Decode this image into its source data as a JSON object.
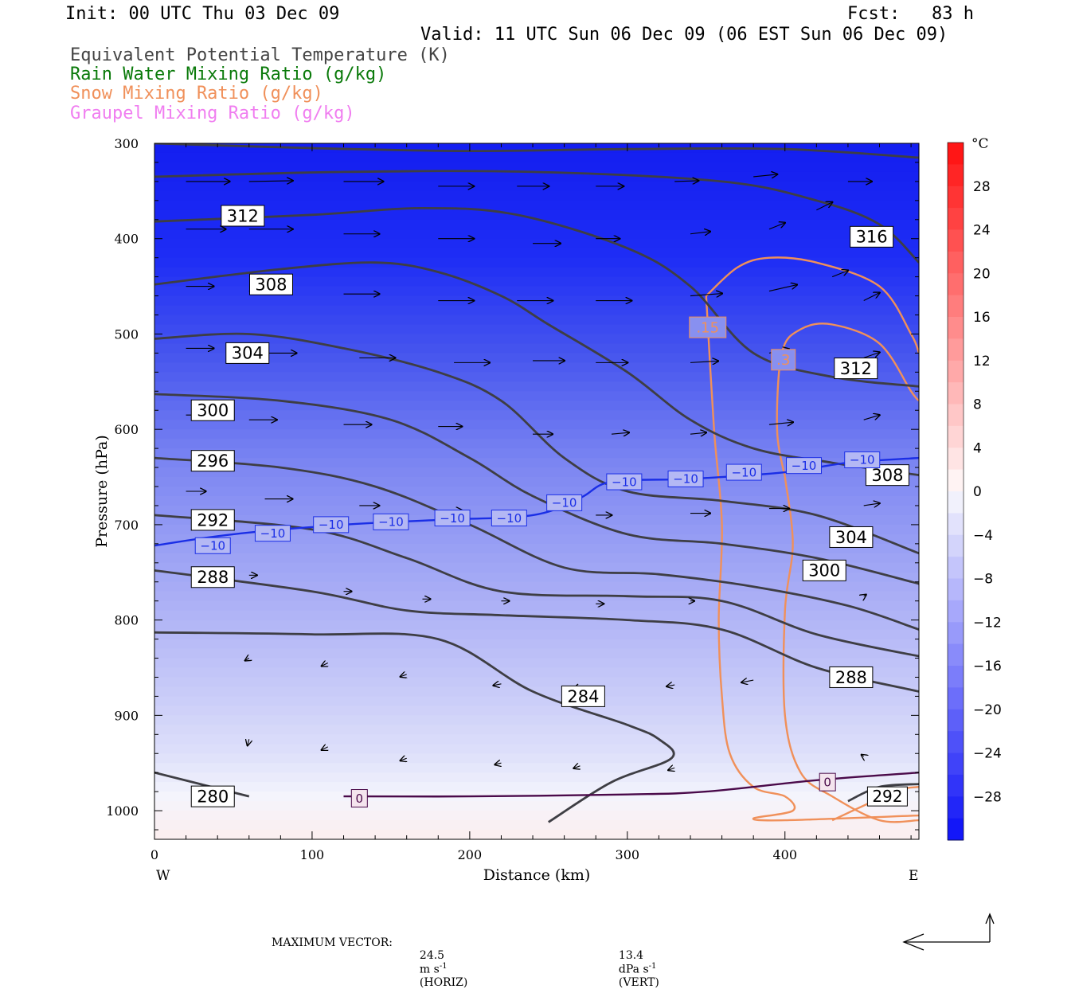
{
  "header": {
    "init": "Init: 00 UTC Thu 03 Dec 09",
    "fcst": "Fcst:   83 h",
    "valid": "Valid: 11 UTC Sun 06 Dec 09 (06 EST Sun 06 Dec 09)"
  },
  "legend": [
    {
      "label": "Equivalent Potential Temperature (K)",
      "color": "#444444"
    },
    {
      "label": "Rain Water Mixing Ratio (g/kg)",
      "color": "#0a7a0a"
    },
    {
      "label": "Snow Mixing Ratio (g/kg)",
      "color": "#f0905a"
    },
    {
      "label": "Graupel Mixing Ratio (g/kg)",
      "color": "#f07ef0"
    }
  ],
  "chart_data": {
    "type": "contour",
    "xlabel": "Distance (km)",
    "ylabel": "Pressure (hPa)",
    "xlim": [
      0,
      485
    ],
    "ylim": [
      1030,
      300
    ],
    "x_ticks": [
      "0",
      "100",
      "200",
      "300",
      "400"
    ],
    "y_ticks": [
      "300",
      "400",
      "500",
      "600",
      "700",
      "800",
      "900",
      "1000"
    ],
    "x_end_labels": {
      "left": "W",
      "right": "E"
    },
    "colorbar": {
      "unit": "°C",
      "min": -32,
      "max": 32,
      "ticks": [
        "28",
        "24",
        "20",
        "16",
        "12",
        "8",
        "4",
        "0",
        "−4",
        "−8",
        "−12",
        "−16",
        "−20",
        "−24",
        "−28"
      ],
      "tick_values": [
        28,
        24,
        20,
        16,
        12,
        8,
        4,
        0,
        -4,
        -8,
        -12,
        -16,
        -20,
        -24,
        -28
      ]
    },
    "theta_e_contours": [
      {
        "label": "280",
        "points": [
          [
            0,
            960
          ],
          [
            60,
            985
          ]
        ]
      },
      {
        "label": "284",
        "points": [
          [
            0,
            813
          ],
          [
            100,
            815
          ],
          [
            180,
            820
          ],
          [
            240,
            875
          ],
          [
            300,
            910
          ],
          [
            320,
            925
          ],
          [
            328,
            945
          ],
          [
            290,
            970
          ],
          [
            250,
            1012
          ]
        ]
      },
      {
        "label": "288",
        "points": [
          [
            0,
            748
          ],
          [
            100,
            770
          ],
          [
            160,
            790
          ],
          [
            220,
            795
          ],
          [
            300,
            800
          ],
          [
            360,
            810
          ],
          [
            420,
            850
          ],
          [
            485,
            875
          ]
        ]
      },
      {
        "label": "288",
        "points": [
          [
            440,
            990
          ],
          [
            460,
            975
          ],
          [
            485,
            972
          ]
        ]
      },
      {
        "label": "292",
        "points": [
          [
            0,
            690
          ],
          [
            100,
            705
          ],
          [
            160,
            735
          ],
          [
            220,
            770
          ],
          [
            300,
            775
          ],
          [
            360,
            780
          ],
          [
            420,
            815
          ],
          [
            485,
            838
          ]
        ]
      },
      {
        "label": "296",
        "points": [
          [
            0,
            630
          ],
          [
            80,
            640
          ],
          [
            140,
            660
          ],
          [
            200,
            700
          ],
          [
            260,
            745
          ],
          [
            320,
            752
          ],
          [
            380,
            765
          ],
          [
            440,
            785
          ],
          [
            485,
            810
          ]
        ]
      },
      {
        "label": "300",
        "points": [
          [
            0,
            563
          ],
          [
            80,
            570
          ],
          [
            150,
            590
          ],
          [
            200,
            630
          ],
          [
            240,
            670
          ],
          [
            300,
            710
          ],
          [
            360,
            720
          ],
          [
            420,
            735
          ],
          [
            485,
            762
          ]
        ]
      },
      {
        "label": "304",
        "points": [
          [
            0,
            505
          ],
          [
            60,
            500
          ],
          [
            120,
            515
          ],
          [
            180,
            540
          ],
          [
            220,
            570
          ],
          [
            260,
            630
          ],
          [
            300,
            665
          ],
          [
            360,
            675
          ],
          [
            420,
            690
          ],
          [
            485,
            730
          ]
        ]
      },
      {
        "label": "308",
        "points": [
          [
            0,
            448
          ],
          [
            80,
            432
          ],
          [
            140,
            425
          ],
          [
            180,
            435
          ],
          [
            220,
            460
          ],
          [
            250,
            490
          ],
          [
            300,
            540
          ],
          [
            340,
            590
          ],
          [
            380,
            620
          ],
          [
            430,
            635
          ],
          [
            485,
            648
          ]
        ]
      },
      {
        "label": "312",
        "points": [
          [
            0,
            382
          ],
          [
            100,
            375
          ],
          [
            170,
            368
          ],
          [
            230,
            375
          ],
          [
            300,
            410
          ],
          [
            340,
            450
          ],
          [
            380,
            520
          ],
          [
            430,
            545
          ],
          [
            485,
            555
          ]
        ]
      },
      {
        "label": "316",
        "points": [
          [
            0,
            335
          ],
          [
            120,
            330
          ],
          [
            240,
            330
          ],
          [
            360,
            340
          ],
          [
            420,
            360
          ],
          [
            460,
            385
          ],
          [
            485,
            425
          ]
        ]
      },
      {
        "label": "",
        "points": [
          [
            0,
            300
          ],
          [
            100,
            305
          ],
          [
            200,
            308
          ],
          [
            300,
            306
          ],
          [
            400,
            306
          ],
          [
            485,
            315
          ]
        ]
      }
    ],
    "temp_contours": [
      {
        "label": "−10",
        "color": "#1a2ee6",
        "points": [
          [
            0,
            722
          ],
          [
            50,
            710
          ],
          [
            120,
            700
          ],
          [
            180,
            695
          ],
          [
            240,
            690
          ],
          [
            270,
            672
          ],
          [
            290,
            655
          ],
          [
            340,
            652
          ],
          [
            400,
            645
          ],
          [
            440,
            635
          ],
          [
            485,
            630
          ]
        ]
      },
      {
        "label": "0",
        "color": "#4a0a4a",
        "points": [
          [
            120,
            985
          ],
          [
            200,
            985
          ],
          [
            300,
            983
          ],
          [
            350,
            980
          ],
          [
            420,
            968
          ],
          [
            485,
            960
          ]
        ]
      }
    ],
    "snow_contours": [
      {
        "label": ".15",
        "points": [
          [
            350,
            460
          ],
          [
            355,
            600
          ],
          [
            360,
            700
          ],
          [
            358,
            800
          ],
          [
            360,
            880
          ],
          [
            365,
            940
          ],
          [
            380,
            975
          ],
          [
            400,
            985
          ],
          [
            405,
            1000
          ],
          [
            380,
            1008
          ],
          [
            400,
            1010
          ],
          [
            485,
            1005
          ]
        ]
      },
      {
        "label": ".15",
        "points": [
          [
            350,
            460
          ],
          [
            370,
            430
          ],
          [
            390,
            420
          ],
          [
            420,
            425
          ],
          [
            460,
            450
          ],
          [
            480,
            500
          ],
          [
            485,
            520
          ]
        ]
      },
      {
        "label": ".3",
        "points": [
          [
            400,
            650
          ],
          [
            405,
            720
          ],
          [
            400,
            790
          ],
          [
            400,
            900
          ],
          [
            410,
            960
          ],
          [
            430,
            985
          ],
          [
            460,
            1010
          ],
          [
            485,
            1010
          ]
        ]
      },
      {
        "label": ".3",
        "points": [
          [
            400,
            650
          ],
          [
            395,
            600
          ],
          [
            398,
            520
          ],
          [
            410,
            495
          ],
          [
            430,
            490
          ],
          [
            460,
            510
          ],
          [
            480,
            560
          ],
          [
            485,
            570
          ]
        ]
      },
      {
        "label": "",
        "points": [
          [
            430,
            1010
          ],
          [
            470,
            980
          ],
          [
            485,
            975
          ]
        ]
      }
    ],
    "vectors": [
      [
        20,
        340,
        55,
        0
      ],
      [
        60,
        340,
        55,
        -1
      ],
      [
        120,
        340,
        50,
        0
      ],
      [
        180,
        345,
        45,
        0
      ],
      [
        230,
        345,
        40,
        0
      ],
      [
        280,
        345,
        35,
        0
      ],
      [
        330,
        340,
        30,
        -1
      ],
      [
        380,
        335,
        30,
        -3
      ],
      [
        440,
        340,
        30,
        0
      ],
      [
        20,
        390,
        50,
        0
      ],
      [
        60,
        390,
        55,
        0
      ],
      [
        120,
        395,
        45,
        0
      ],
      [
        180,
        400,
        45,
        0
      ],
      [
        240,
        405,
        35,
        0
      ],
      [
        280,
        400,
        30,
        0
      ],
      [
        340,
        395,
        25,
        -3
      ],
      [
        390,
        390,
        20,
        -8
      ],
      [
        420,
        370,
        20,
        -10
      ],
      [
        20,
        450,
        35,
        0
      ],
      [
        60,
        455,
        45,
        0
      ],
      [
        120,
        458,
        45,
        0
      ],
      [
        180,
        465,
        45,
        0
      ],
      [
        230,
        465,
        45,
        0
      ],
      [
        280,
        465,
        45,
        0
      ],
      [
        340,
        460,
        40,
        -3
      ],
      [
        390,
        455,
        35,
        -8
      ],
      [
        430,
        440,
        20,
        -8
      ],
      [
        450,
        465,
        20,
        -10
      ],
      [
        20,
        515,
        35,
        0
      ],
      [
        70,
        520,
        40,
        0
      ],
      [
        130,
        525,
        45,
        0
      ],
      [
        190,
        530,
        45,
        0
      ],
      [
        240,
        528,
        40,
        0
      ],
      [
        280,
        530,
        40,
        0
      ],
      [
        340,
        530,
        35,
        -2
      ],
      [
        390,
        520,
        25,
        -5
      ],
      [
        450,
        525,
        20,
        -7
      ],
      [
        20,
        585,
        30,
        0
      ],
      [
        60,
        590,
        35,
        0
      ],
      [
        120,
        595,
        35,
        0
      ],
      [
        180,
        597,
        30,
        0
      ],
      [
        240,
        605,
        25,
        0
      ],
      [
        290,
        605,
        22,
        -2
      ],
      [
        340,
        605,
        20,
        -2
      ],
      [
        390,
        595,
        30,
        -3
      ],
      [
        450,
        590,
        20,
        -6
      ],
      [
        20,
        665,
        25,
        0
      ],
      [
        70,
        673,
        35,
        0
      ],
      [
        130,
        680,
        25,
        0
      ],
      [
        180,
        685,
        30,
        0
      ],
      [
        220,
        690,
        25,
        0
      ],
      [
        280,
        690,
        20,
        0
      ],
      [
        340,
        688,
        25,
        0
      ],
      [
        390,
        683,
        25,
        0
      ],
      [
        450,
        680,
        20,
        -3
      ],
      [
        60,
        753,
        10,
        0
      ],
      [
        120,
        770,
        10,
        0
      ],
      [
        170,
        778,
        10,
        0
      ],
      [
        220,
        780,
        10,
        0
      ],
      [
        280,
        783,
        10,
        0
      ],
      [
        340,
        780,
        5,
        0
      ],
      [
        450,
        775,
        3,
        -2
      ],
      [
        60,
        840,
        -5,
        3
      ],
      [
        110,
        845,
        -8,
        4
      ],
      [
        160,
        857,
        -8,
        3
      ],
      [
        220,
        867,
        -10,
        2
      ],
      [
        270,
        870,
        -8,
        3
      ],
      [
        330,
        868,
        -10,
        2
      ],
      [
        380,
        863,
        -15,
        3
      ],
      [
        440,
        860,
        -20,
        0
      ],
      [
        60,
        925,
        -2,
        8
      ],
      [
        110,
        933,
        -8,
        4
      ],
      [
        160,
        945,
        -8,
        3
      ],
      [
        220,
        950,
        -8,
        2
      ],
      [
        270,
        953,
        -8,
        3
      ],
      [
        330,
        955,
        -8,
        3
      ],
      [
        450,
        943,
        -3,
        -2
      ]
    ]
  },
  "footer": {
    "label": "MAXIMUM VECTOR:",
    "horiz_value": "24.5",
    "horiz_unit_base": "m s",
    "horiz_unit_exp": "-1",
    "horiz_tag": "(HORIZ)",
    "vert_value": "13.4",
    "vert_unit_base": "dPa s",
    "vert_unit_exp": "-1",
    "vert_tag": "(VERT)"
  }
}
